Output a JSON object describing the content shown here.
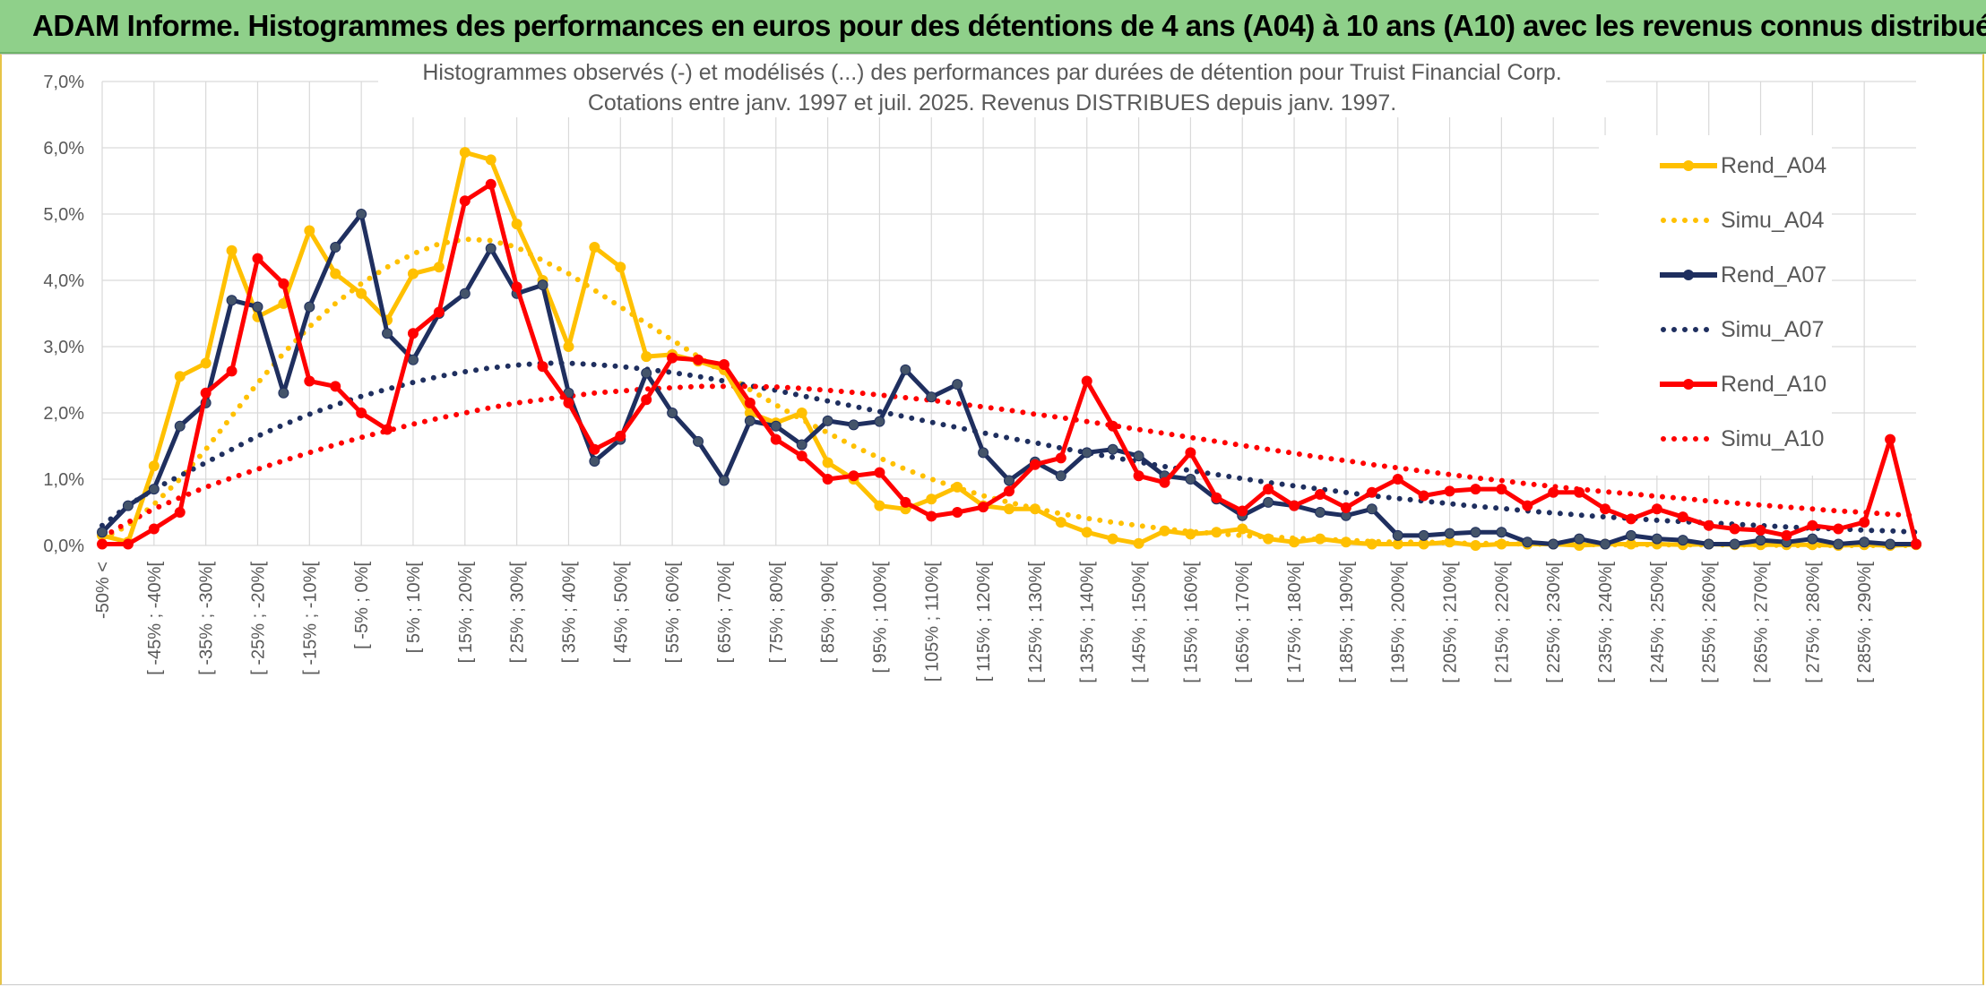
{
  "banner": {
    "title": "ADAM Informe. Histogrammes des performances en euros pour des détentions de 4 ans (A04) à 10 ans (A10) avec les revenus connus distribués"
  },
  "colors": {
    "banner_bg": "#8fd08a",
    "a04": "#ffc000",
    "a07": "#1f2f5f",
    "a10": "#ff0000",
    "grid": "#d9d9d9"
  },
  "chart_data": {
    "type": "line",
    "title": "Histogrammes observés (-) et modélisés (...) des performances par durées de détention pour Truist Financial Corp.",
    "subtitle": "Cotations entre janv. 1997 et juil. 2025. Revenus DISTRIBUES depuis janv. 1997.",
    "ylim": [
      0,
      7
    ],
    "yticks": [
      "0,0%",
      "1,0%",
      "2,0%",
      "3,0%",
      "4,0%",
      "5,0%",
      "6,0%",
      "7,0%"
    ],
    "grid": true,
    "legend_position": "right",
    "x_labels": [
      "-50% <",
      "[ -45% ; -40%[",
      "[ -35% ; -30%[",
      "[ -25% ; -20%[",
      "[ -15% ; -10%[",
      "[ -5% ; 0%[",
      "[ 5% ; 10%[",
      "[ 15% ; 20%[",
      "[ 25% ; 30%[",
      "[ 35% ; 40%[",
      "[ 45% ; 50%[",
      "[ 55% ; 60%[",
      "[ 65% ; 70%[",
      "[ 75% ; 80%[",
      "[ 85% ; 90%[",
      "[ 95% ; 100%[",
      "[ 105% ; 110%[",
      "[ 115% ; 120%[",
      "[ 125% ; 130%[",
      "[ 135% ; 140%[",
      "[ 145% ; 150%[",
      "[ 155% ; 160%[",
      "[ 165% ; 170%[",
      "[ 175% ; 180%[",
      "[ 185% ; 190%[",
      "[ 195% ; 200%[",
      "[ 205% ; 210%[",
      "[ 215% ; 220%[",
      "[ 225% ; 230%[",
      "[ 235% ; 240%[",
      "[ 245% ; 250%[",
      "[ 255% ; 260%[",
      "[ 265% ; 270%[",
      "[ 275% ; 280%[",
      "[ 285% ; 290%["
    ],
    "x_count": 71,
    "series": [
      {
        "name": "Rend_A04",
        "style": "solid",
        "color": "#ffc000",
        "values": [
          0.15,
          0.05,
          1.2,
          2.55,
          2.75,
          4.45,
          3.45,
          3.65,
          4.75,
          4.1,
          3.8,
          3.4,
          4.1,
          4.2,
          5.93,
          5.82,
          4.85,
          4.0,
          3.0,
          4.5,
          4.2,
          2.85,
          2.88,
          2.78,
          2.65,
          2.0,
          1.85,
          2.0,
          1.25,
          1.0,
          0.6,
          0.55,
          0.7,
          0.88,
          0.6,
          0.55,
          0.55,
          0.35,
          0.2,
          0.1,
          0.03,
          0.22,
          0.17,
          0.2,
          0.25,
          0.1,
          0.05,
          0.1,
          0.05,
          0.02,
          0.02,
          0.02,
          0.05,
          0.0,
          0.02,
          0.02,
          0.02,
          0.0,
          0.02,
          0.02,
          0.02,
          0.01,
          0.02,
          0.01,
          0.01,
          0.01,
          0.01,
          0.0,
          0.01,
          0.0,
          0.01
        ]
      },
      {
        "name": "Simu_A04",
        "style": "dotted",
        "color": "#ffc000",
        "values": [
          0.1,
          0.3,
          0.62,
          1.0,
          1.45,
          1.95,
          2.45,
          2.9,
          3.3,
          3.65,
          3.95,
          4.2,
          4.4,
          4.55,
          4.62,
          4.6,
          4.5,
          4.3,
          4.1,
          3.85,
          3.6,
          3.35,
          3.1,
          2.85,
          2.6,
          2.35,
          2.12,
          1.9,
          1.7,
          1.5,
          1.32,
          1.15,
          1.0,
          0.87,
          0.75,
          0.65,
          0.56,
          0.48,
          0.41,
          0.35,
          0.3,
          0.25,
          0.21,
          0.18,
          0.15,
          0.13,
          0.11,
          0.09,
          0.08,
          0.06,
          0.05,
          0.05,
          0.04,
          0.03,
          0.03,
          0.02,
          0.02,
          0.02,
          0.01,
          0.01,
          0.01,
          0.01,
          0.01,
          0.01,
          0.01,
          0.0,
          0.0,
          0.0,
          0.0,
          0.0,
          0.0
        ]
      },
      {
        "name": "Rend_A07",
        "style": "solid",
        "color": "#1f2f5f",
        "values": [
          0.2,
          0.6,
          0.85,
          1.8,
          2.15,
          3.7,
          3.6,
          2.3,
          3.6,
          4.5,
          5.0,
          3.2,
          2.8,
          3.5,
          3.8,
          4.48,
          3.8,
          3.93,
          2.3,
          1.27,
          1.6,
          2.6,
          2.0,
          1.57,
          0.98,
          1.88,
          1.8,
          1.52,
          1.88,
          1.82,
          1.87,
          2.65,
          2.24,
          2.43,
          1.4,
          0.98,
          1.26,
          1.05,
          1.4,
          1.45,
          1.35,
          1.05,
          1.0,
          0.7,
          0.45,
          0.65,
          0.6,
          0.5,
          0.45,
          0.55,
          0.15,
          0.15,
          0.18,
          0.2,
          0.2,
          0.05,
          0.02,
          0.1,
          0.02,
          0.15,
          0.1,
          0.08,
          0.02,
          0.02,
          0.08,
          0.05,
          0.1,
          0.02,
          0.05,
          0.02,
          0.02
        ]
      },
      {
        "name": "Simu_A07",
        "style": "dotted",
        "color": "#1f2f5f",
        "values": [
          0.3,
          0.6,
          0.85,
          1.05,
          1.25,
          1.45,
          1.65,
          1.82,
          1.98,
          2.12,
          2.25,
          2.36,
          2.46,
          2.55,
          2.62,
          2.68,
          2.72,
          2.75,
          2.75,
          2.73,
          2.7,
          2.66,
          2.61,
          2.55,
          2.48,
          2.41,
          2.34,
          2.26,
          2.18,
          2.1,
          2.02,
          1.94,
          1.86,
          1.78,
          1.7,
          1.62,
          1.55,
          1.47,
          1.4,
          1.33,
          1.26,
          1.19,
          1.13,
          1.07,
          1.01,
          0.95,
          0.9,
          0.85,
          0.8,
          0.75,
          0.71,
          0.67,
          0.63,
          0.59,
          0.56,
          0.52,
          0.49,
          0.46,
          0.43,
          0.41,
          0.38,
          0.36,
          0.34,
          0.32,
          0.3,
          0.28,
          0.26,
          0.25,
          0.23,
          0.22,
          0.2
        ]
      },
      {
        "name": "Rend_A10",
        "style": "solid",
        "color": "#ff0000",
        "values": [
          0.02,
          0.02,
          0.25,
          0.5,
          2.3,
          2.63,
          4.33,
          3.95,
          2.48,
          2.4,
          2.0,
          1.75,
          3.2,
          3.52,
          5.2,
          5.45,
          3.9,
          2.7,
          2.15,
          1.45,
          1.65,
          2.2,
          2.83,
          2.8,
          2.73,
          2.15,
          1.6,
          1.35,
          1.0,
          1.05,
          1.1,
          0.65,
          0.44,
          0.5,
          0.58,
          0.82,
          1.22,
          1.32,
          2.48,
          1.8,
          1.05,
          0.95,
          1.4,
          0.72,
          0.52,
          0.85,
          0.6,
          0.77,
          0.57,
          0.8,
          1.0,
          0.75,
          0.82,
          0.85,
          0.85,
          0.6,
          0.8,
          0.8,
          0.55,
          0.4,
          0.55,
          0.43,
          0.3,
          0.25,
          0.23,
          0.15,
          0.3,
          0.25,
          0.35,
          1.6,
          0.02
        ]
      },
      {
        "name": "Simu_A10",
        "style": "dotted",
        "color": "#ff0000",
        "values": [
          0.12,
          0.35,
          0.55,
          0.72,
          0.88,
          1.02,
          1.15,
          1.28,
          1.4,
          1.52,
          1.63,
          1.73,
          1.83,
          1.92,
          2.0,
          2.08,
          2.15,
          2.2,
          2.25,
          2.3,
          2.33,
          2.36,
          2.38,
          2.4,
          2.4,
          2.4,
          2.39,
          2.37,
          2.34,
          2.31,
          2.27,
          2.23,
          2.19,
          2.14,
          2.09,
          2.04,
          1.98,
          1.93,
          1.87,
          1.81,
          1.75,
          1.69,
          1.63,
          1.57,
          1.51,
          1.45,
          1.39,
          1.33,
          1.28,
          1.22,
          1.17,
          1.12,
          1.07,
          1.02,
          0.98,
          0.93,
          0.89,
          0.85,
          0.81,
          0.78,
          0.74,
          0.71,
          0.67,
          0.64,
          0.61,
          0.58,
          0.55,
          0.52,
          0.5,
          0.47,
          0.45
        ]
      }
    ]
  }
}
